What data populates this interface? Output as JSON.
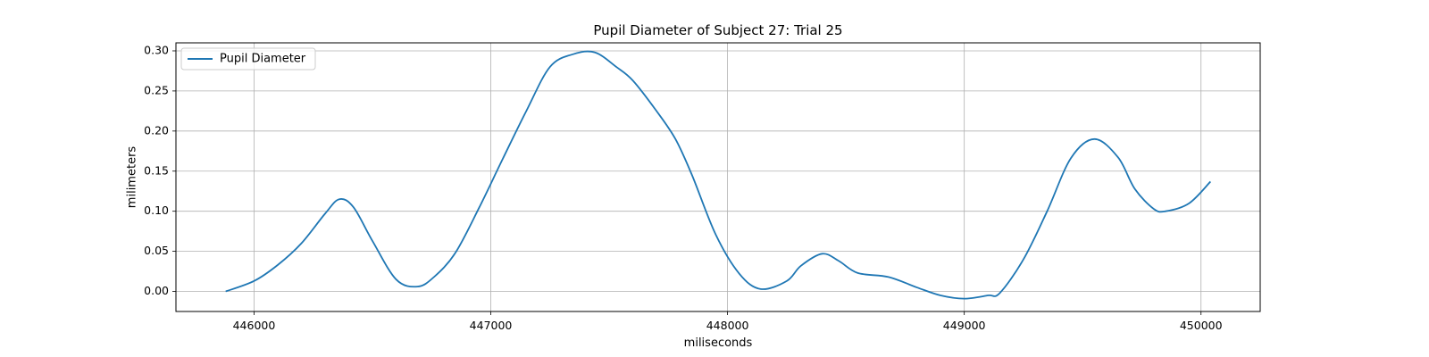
{
  "chart_data": {
    "type": "line",
    "title": "Pupil Diameter of Subject 27: Trial 25",
    "xlabel": "miliseconds",
    "ylabel": "milimeters",
    "xlim": [
      445670,
      450250
    ],
    "ylim": [
      -0.025,
      0.31
    ],
    "xticks": [
      446000,
      447000,
      448000,
      449000,
      450000
    ],
    "yticks": [
      0.0,
      0.05,
      0.1,
      0.15,
      0.2,
      0.25,
      0.3
    ],
    "ytick_labels": [
      "0.00",
      "0.05",
      "0.10",
      "0.15",
      "0.20",
      "0.25",
      "0.30"
    ],
    "grid": true,
    "legend_position": "upper-left",
    "series": [
      {
        "name": "Pupil Diameter",
        "color": "#1f77b4",
        "x": [
          445880,
          446000,
          446100,
          446200,
          446300,
          446360,
          446420,
          446500,
          446600,
          446690,
          446760,
          446850,
          446950,
          447050,
          447150,
          447250,
          447350,
          447440,
          447530,
          447600,
          447700,
          447780,
          447850,
          447950,
          448050,
          448140,
          448250,
          448310,
          448400,
          448470,
          448550,
          448680,
          448800,
          448900,
          449000,
          449100,
          449150,
          449250,
          449350,
          449450,
          449550,
          449650,
          449720,
          449800,
          449850,
          449950,
          450040
        ],
        "y": [
          0.0,
          0.013,
          0.033,
          0.06,
          0.097,
          0.115,
          0.105,
          0.063,
          0.015,
          0.006,
          0.018,
          0.048,
          0.104,
          0.165,
          0.225,
          0.28,
          0.296,
          0.298,
          0.28,
          0.263,
          0.225,
          0.19,
          0.145,
          0.071,
          0.022,
          0.003,
          0.013,
          0.032,
          0.047,
          0.038,
          0.023,
          0.018,
          0.005,
          -0.005,
          -0.009,
          -0.005,
          -0.002,
          0.04,
          0.1,
          0.166,
          0.19,
          0.167,
          0.128,
          0.103,
          0.1,
          0.11,
          0.137
        ]
      }
    ]
  }
}
